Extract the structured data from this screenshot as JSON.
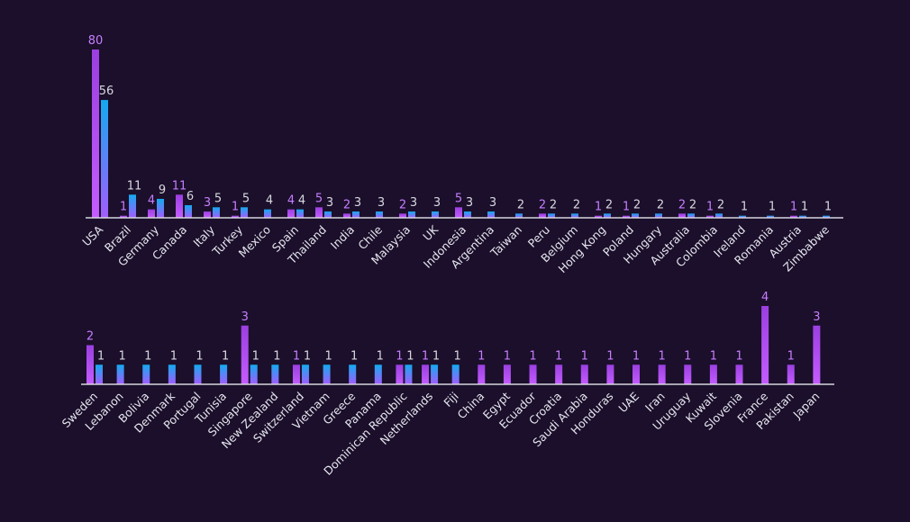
{
  "colors": {
    "background": "#1b0f2b",
    "series_a_top": "#9b3fe0",
    "series_a_bottom": "#c45cff",
    "series_b_top": "#14aaf0",
    "series_b_bottom": "#a35cff",
    "series_a_label": "#c77dff",
    "series_b_label": "#d8d8e0",
    "axis": "#d6d6de"
  },
  "chart_data": [
    {
      "type": "bar",
      "title": "",
      "xlabel": "",
      "ylabel": "",
      "grid": false,
      "ylim": [
        0,
        80
      ],
      "categories": [
        "USA",
        "Brazil",
        "Germany",
        "Canada",
        "Italy",
        "Turkey",
        "Mexico",
        "Spain",
        "Thailand",
        "India",
        "Chile",
        "Malaysia",
        "UK",
        "Indonesia",
        "Argentina",
        "Taiwan",
        "Peru",
        "Belgium",
        "Hong Kong",
        "Poland",
        "Hungary",
        "Australia",
        "Colombia",
        "Ireland",
        "Romania",
        "Austria",
        "Zimbabwe"
      ],
      "series": [
        {
          "name": "series_a",
          "values": [
            80,
            1,
            4,
            11,
            3,
            1,
            null,
            4,
            5,
            2,
            null,
            2,
            null,
            5,
            null,
            null,
            2,
            null,
            1,
            1,
            null,
            2,
            1,
            null,
            null,
            1,
            null
          ]
        },
        {
          "name": "series_b",
          "values": [
            56,
            11,
            9,
            6,
            5,
            5,
            4,
            4,
            3,
            3,
            3,
            3,
            3,
            3,
            3,
            2,
            2,
            2,
            2,
            2,
            2,
            2,
            2,
            1,
            1,
            1,
            1
          ]
        }
      ]
    },
    {
      "type": "bar",
      "title": "",
      "xlabel": "",
      "ylabel": "",
      "grid": false,
      "ylim": [
        0,
        4
      ],
      "categories": [
        "Sweden",
        "Lebanon",
        "Bolivia",
        "Denmark",
        "Portugal",
        "Tunisia",
        "Singapore",
        "New Zealand",
        "Switzerland",
        "Vietnam",
        "Greece",
        "Panama",
        "Dominican Republic",
        "Netherlands",
        "Fiji",
        "China",
        "Egypt",
        "Ecuador",
        "Croatia",
        "Saudi Arabia",
        "Honduras",
        "UAE",
        "Iran",
        "Uruguay",
        "Kuwait",
        "Slovenia",
        "France",
        "Pakistan",
        "Japan"
      ],
      "series": [
        {
          "name": "series_a",
          "values": [
            2,
            null,
            null,
            null,
            null,
            null,
            3,
            null,
            1,
            null,
            null,
            null,
            1,
            1,
            null,
            1,
            1,
            1,
            1,
            1,
            1,
            1,
            1,
            1,
            1,
            1,
            4,
            1,
            3
          ]
        },
        {
          "name": "series_b",
          "values": [
            1,
            1,
            1,
            1,
            1,
            1,
            1,
            1,
            1,
            1,
            1,
            1,
            1,
            1,
            1,
            null,
            null,
            null,
            null,
            null,
            null,
            null,
            null,
            null,
            null,
            null,
            null,
            null,
            null
          ]
        }
      ]
    }
  ]
}
